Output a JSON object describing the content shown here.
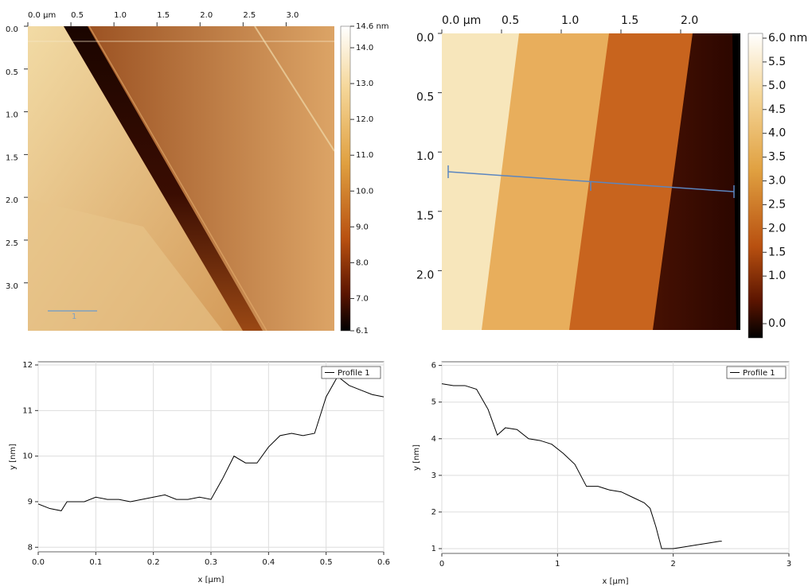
{
  "chart_data": [
    {
      "type": "image",
      "xlim": [
        0,
        3.56
      ],
      "ylim": [
        0,
        3.56
      ],
      "xticks": [
        {
          "value": 0,
          "label": "0.0 µm"
        },
        0.5,
        {
          "value": 1,
          "label": "1.0"
        },
        1.5,
        {
          "value": 2,
          "label": "2.0"
        },
        2.5,
        {
          "value": 3,
          "label": "3.0"
        }
      ],
      "yticks": [
        {
          "value": 0,
          "label": "0.0"
        },
        0.5,
        {
          "value": 1,
          "label": "1.0"
        },
        1.5,
        {
          "value": 2,
          "label": "2.0"
        },
        2.5,
        {
          "value": 3,
          "label": "3.0"
        }
      ],
      "clim": [
        6.1,
        14.6
      ],
      "cticks": [
        {
          "value": 14.6,
          "label": "14.6 nm"
        },
        {
          "value": 14,
          "label": "14.0"
        },
        {
          "value": 13,
          "label": "13.0"
        },
        {
          "value": 12,
          "label": "12.0"
        },
        {
          "value": 11,
          "label": "11.0"
        },
        {
          "value": 10,
          "label": "10.0"
        },
        {
          "value": 9,
          "label": "9.0"
        },
        {
          "value": 8,
          "label": "8.0"
        },
        {
          "value": 7,
          "label": "7.0"
        },
        6.1
      ],
      "scale_bar_label": "1"
    },
    {
      "type": "image",
      "xlim": [
        0,
        2.5
      ],
      "ylim": [
        0,
        2.5
      ],
      "xticks": [
        {
          "value": 0,
          "label": "0.0 µm"
        },
        0.5,
        {
          "value": 1,
          "label": "1.0"
        },
        1.5,
        {
          "value": 2,
          "label": "2.0"
        }
      ],
      "yticks": [
        {
          "value": 0,
          "label": "0.0"
        },
        0.5,
        {
          "value": 1,
          "label": "1.0"
        },
        1.5,
        {
          "value": 2,
          "label": "2.0"
        }
      ],
      "clim": [
        -0.3,
        6.1
      ],
      "cticks": [
        {
          "value": 6,
          "label": "6.0 nm"
        },
        5.5,
        {
          "value": 5,
          "label": "5.0"
        },
        4.5,
        {
          "value": 4,
          "label": "4.0"
        },
        3.5,
        {
          "value": 3,
          "label": "3.0"
        },
        2.5,
        {
          "value": 2,
          "label": "2.0"
        },
        1.5,
        {
          "value": 1,
          "label": "1.0"
        },
        {
          "value": 0,
          "label": "0.0"
        }
      ]
    },
    {
      "type": "line",
      "x_label": "x [µm]",
      "y_label": "y [nm]",
      "grid": true,
      "legend": "upper right",
      "xlim": [
        0,
        0.6
      ],
      "ylim": [
        7.9,
        12.07
      ],
      "xticks": [
        {
          "value": 0,
          "label": "0.0"
        },
        0.1,
        0.2,
        0.3,
        0.4,
        0.5,
        0.6
      ],
      "yticks": [
        8,
        9,
        10,
        11,
        12
      ],
      "x": [
        0,
        0.02,
        0.04,
        0.05,
        0.08,
        0.1,
        0.12,
        0.14,
        0.16,
        0.18,
        0.2,
        0.22,
        0.24,
        0.26,
        0.28,
        0.3,
        0.32,
        0.34,
        0.36,
        0.38,
        0.4,
        0.42,
        0.44,
        0.46,
        0.48,
        0.5,
        0.52,
        0.54,
        0.56,
        0.58,
        0.6
      ],
      "series": [
        {
          "name": "Profile 1",
          "color": "#000000",
          "values": [
            8.95,
            8.85,
            8.8,
            9.0,
            9.0,
            9.1,
            9.05,
            9.05,
            9.0,
            9.05,
            9.1,
            9.15,
            9.05,
            9.05,
            9.1,
            9.05,
            9.5,
            10.0,
            9.85,
            9.85,
            10.2,
            10.45,
            10.5,
            10.45,
            10.5,
            11.3,
            11.75,
            11.55,
            11.45,
            11.35,
            11.3
          ]
        }
      ]
    },
    {
      "type": "line",
      "x_label": "x [µm]",
      "y_label": "y [nm]",
      "grid": true,
      "legend": "upper right",
      "xlim": [
        0,
        3
      ],
      "ylim": [
        0.87,
        6.1
      ],
      "xticks": [
        0,
        1,
        2,
        3
      ],
      "yticks": [
        1,
        2,
        3,
        4,
        5,
        6
      ],
      "x": [
        0,
        0.1,
        0.2,
        0.3,
        0.4,
        0.48,
        0.55,
        0.65,
        0.75,
        0.85,
        0.95,
        1.05,
        1.15,
        1.25,
        1.35,
        1.45,
        1.55,
        1.65,
        1.75,
        1.8,
        1.85,
        1.9,
        2.0,
        2.1,
        2.2,
        2.3,
        2.4,
        2.42
      ],
      "series": [
        {
          "name": "Profile 1",
          "color": "#000000",
          "values": [
            5.5,
            5.45,
            5.45,
            5.35,
            4.8,
            4.1,
            4.3,
            4.25,
            4.0,
            3.95,
            3.85,
            3.6,
            3.3,
            2.7,
            2.7,
            2.6,
            2.55,
            2.4,
            2.25,
            2.1,
            1.6,
            1.0,
            1.0,
            1.05,
            1.1,
            1.15,
            1.2,
            1.2
          ]
        }
      ]
    }
  ]
}
